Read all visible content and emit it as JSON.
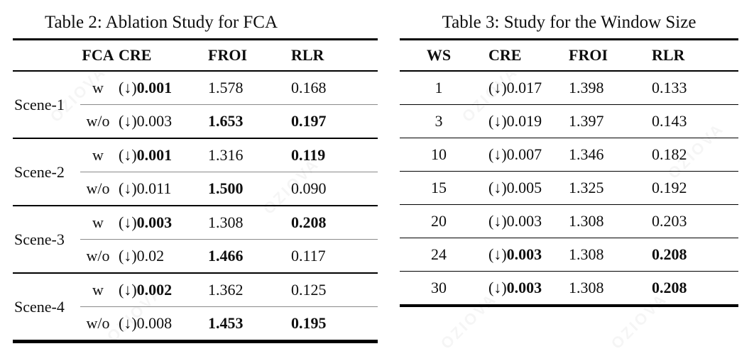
{
  "page": {
    "background": "#ffffff",
    "text_color": "#0e0e0e",
    "rule_color": "#000000",
    "inner_rule_color": "#8a8a8a"
  },
  "watermark": {
    "text": "OZIOVA"
  },
  "glyphs": {
    "down_arrow": "(↓)"
  },
  "table2": {
    "title": "Table 2: Ablation Study for FCA",
    "col_headers": {
      "fca": "FCA",
      "cre": "CRE",
      "froi": "FROI",
      "rlr": "RLR"
    },
    "groups": [
      {
        "scene": "Scene-1",
        "rows": [
          {
            "fca": "w",
            "cre": "0.001",
            "cre_bold": true,
            "froi": "1.578",
            "froi_bold": false,
            "rlr": "0.168",
            "rlr_bold": false
          },
          {
            "fca": "w/o",
            "cre": "0.003",
            "cre_bold": false,
            "froi": "1.653",
            "froi_bold": true,
            "rlr": "0.197",
            "rlr_bold": true
          }
        ]
      },
      {
        "scene": "Scene-2",
        "rows": [
          {
            "fca": "w",
            "cre": "0.001",
            "cre_bold": true,
            "froi": "1.316",
            "froi_bold": false,
            "rlr": "0.119",
            "rlr_bold": true
          },
          {
            "fca": "w/o",
            "cre": "0.011",
            "cre_bold": false,
            "froi": "1.500",
            "froi_bold": true,
            "rlr": "0.090",
            "rlr_bold": false
          }
        ]
      },
      {
        "scene": "Scene-3",
        "rows": [
          {
            "fca": "w",
            "cre": "0.003",
            "cre_bold": true,
            "froi": "1.308",
            "froi_bold": false,
            "rlr": "0.208",
            "rlr_bold": true
          },
          {
            "fca": "w/o",
            "cre": "0.02",
            "cre_bold": false,
            "froi": "1.466",
            "froi_bold": true,
            "rlr": "0.117",
            "rlr_bold": false
          }
        ]
      },
      {
        "scene": "Scene-4",
        "rows": [
          {
            "fca": "w",
            "cre": "0.002",
            "cre_bold": true,
            "froi": "1.362",
            "froi_bold": false,
            "rlr": "0.125",
            "rlr_bold": false
          },
          {
            "fca": "w/o",
            "cre": "0.008",
            "cre_bold": false,
            "froi": "1.453",
            "froi_bold": true,
            "rlr": "0.195",
            "rlr_bold": true
          }
        ]
      }
    ]
  },
  "table3": {
    "title": "Table 3: Study for the Window Size",
    "col_headers": {
      "ws": "WS",
      "cre": "CRE",
      "froi": "FROI",
      "rlr": "RLR"
    },
    "rows": [
      {
        "ws": "1",
        "cre": "0.017",
        "cre_bold": false,
        "froi": "1.398",
        "froi_bold": false,
        "rlr": "0.133",
        "rlr_bold": false
      },
      {
        "ws": "3",
        "cre": "0.019",
        "cre_bold": false,
        "froi": "1.397",
        "froi_bold": false,
        "rlr": "0.143",
        "rlr_bold": false
      },
      {
        "ws": "10",
        "cre": "0.007",
        "cre_bold": false,
        "froi": "1.346",
        "froi_bold": false,
        "rlr": "0.182",
        "rlr_bold": false
      },
      {
        "ws": "15",
        "cre": "0.005",
        "cre_bold": false,
        "froi": "1.325",
        "froi_bold": false,
        "rlr": "0.192",
        "rlr_bold": false
      },
      {
        "ws": "20",
        "cre": "0.003",
        "cre_bold": false,
        "froi": "1.308",
        "froi_bold": false,
        "rlr": "0.203",
        "rlr_bold": false
      },
      {
        "ws": "24",
        "cre": "0.003",
        "cre_bold": true,
        "froi": "1.308",
        "froi_bold": false,
        "rlr": "0.208",
        "rlr_bold": true
      },
      {
        "ws": "30",
        "cre": "0.003",
        "cre_bold": true,
        "froi": "1.308",
        "froi_bold": false,
        "rlr": "0.208",
        "rlr_bold": true
      }
    ]
  }
}
